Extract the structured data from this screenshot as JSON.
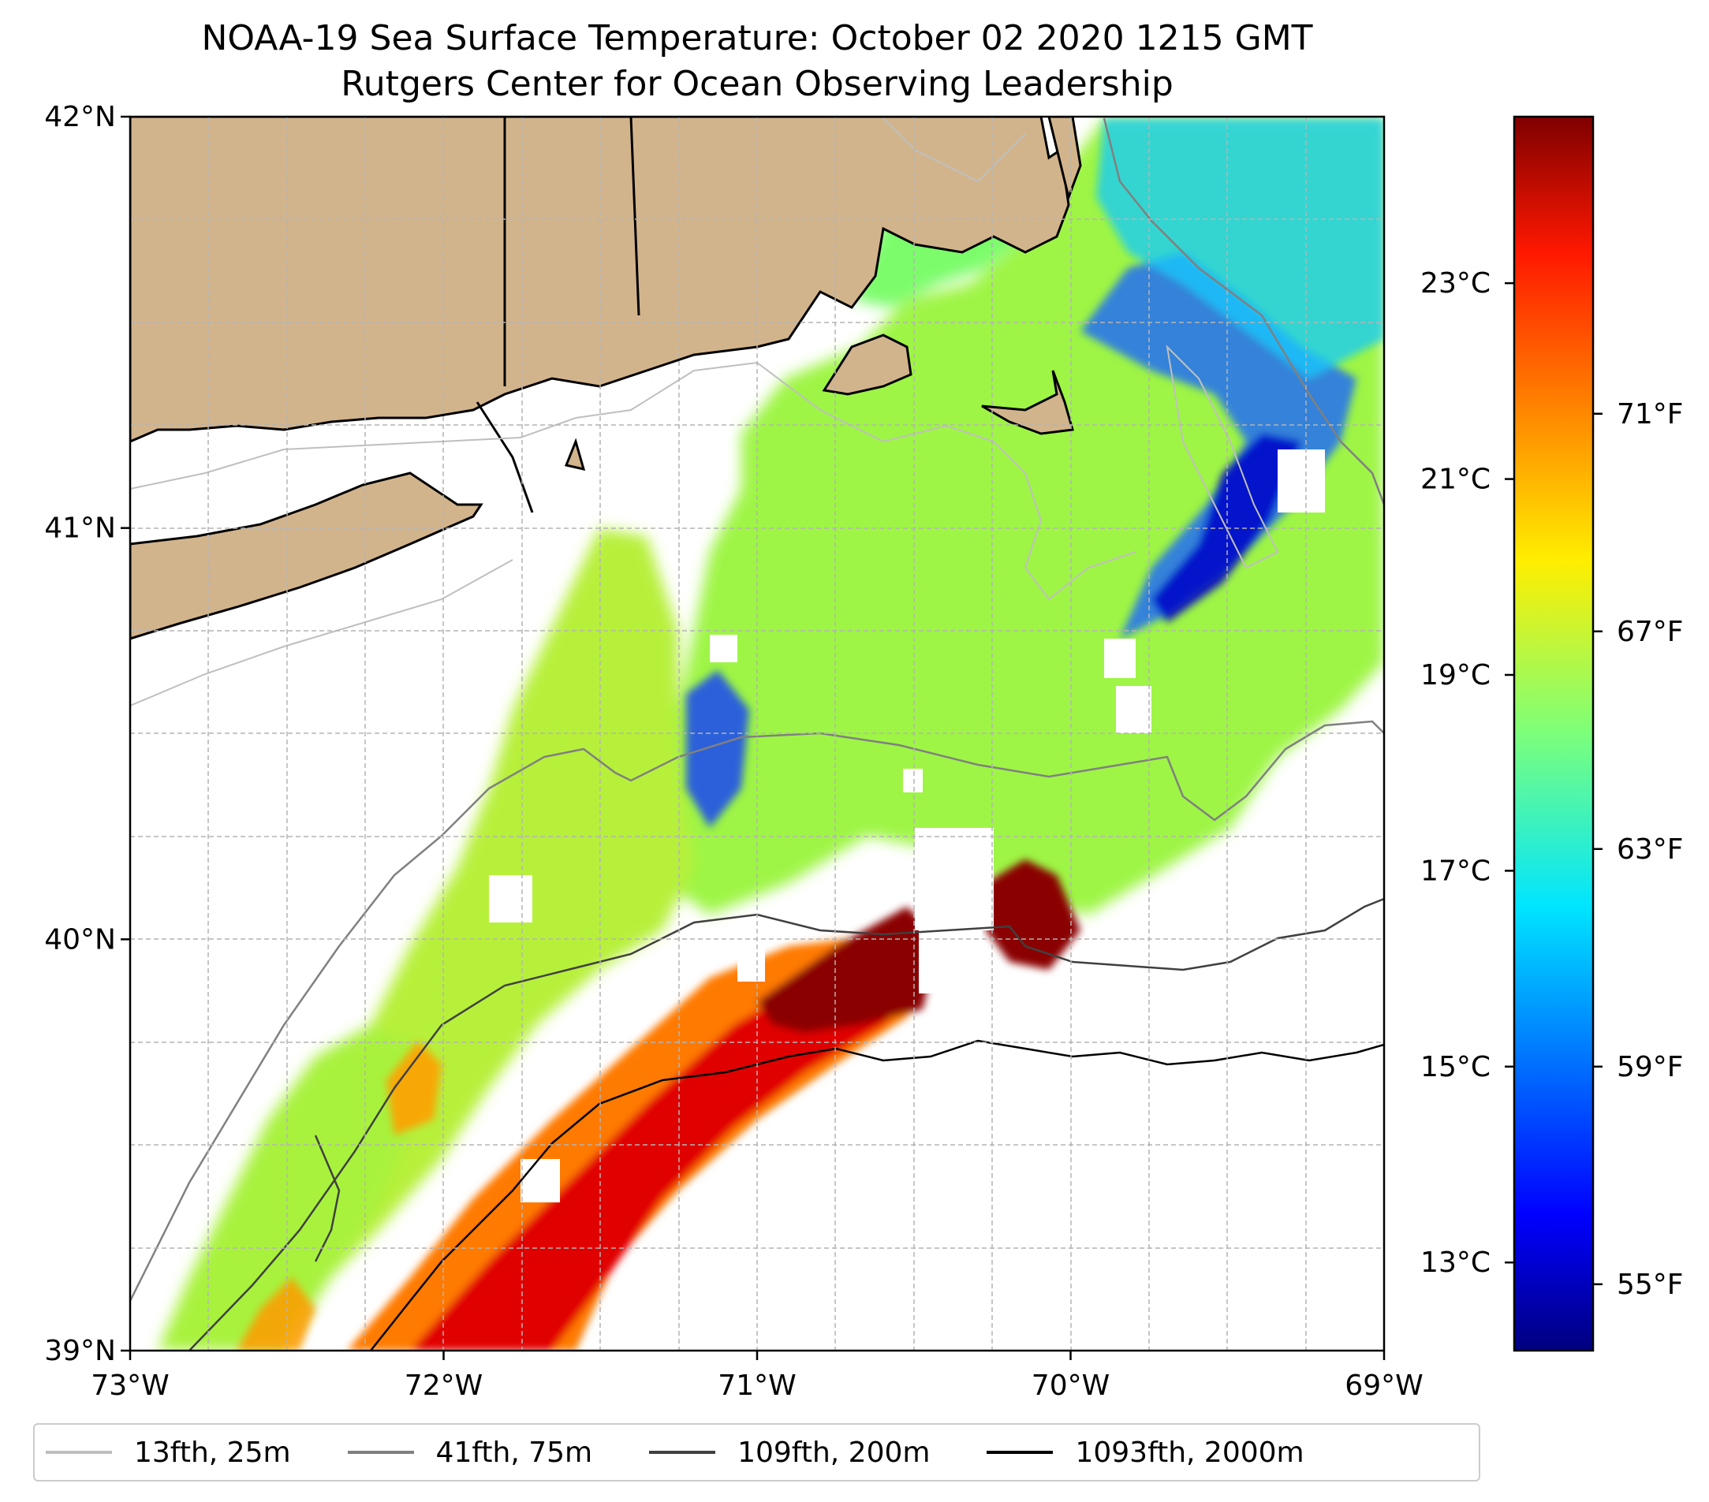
{
  "title": {
    "line1": "NOAA-19 Sea Surface Temperature: October 02 2020 1215 GMT",
    "line2": "Rutgers Center for Ocean Observing Leadership"
  },
  "map": {
    "lon_range": [
      -73,
      -69
    ],
    "lat_range": [
      39,
      42
    ],
    "x_ticks": [
      {
        "lon": -73,
        "label": "73°W"
      },
      {
        "lon": -72,
        "label": "72°W"
      },
      {
        "lon": -71,
        "label": "71°W"
      },
      {
        "lon": -70,
        "label": "70°W"
      },
      {
        "lon": -69,
        "label": "69°W"
      }
    ],
    "y_ticks": [
      {
        "lat": 42,
        "label": "42°N"
      },
      {
        "lat": 41,
        "label": "41°N"
      },
      {
        "lat": 40,
        "label": "40°N"
      },
      {
        "lat": 39,
        "label": "39°N"
      }
    ],
    "land_color": "#D2B48C",
    "gridlines": "dashed"
  },
  "colorbar": {
    "colormap": "jet",
    "range_c": [
      12.1,
      24.7
    ],
    "celsius_ticks": [
      {
        "value": 13,
        "label": "13°C"
      },
      {
        "value": 15,
        "label": "15°C"
      },
      {
        "value": 17,
        "label": "17°C"
      },
      {
        "value": 19,
        "label": "19°C"
      },
      {
        "value": 21,
        "label": "21°C"
      },
      {
        "value": 23,
        "label": "23°C"
      }
    ],
    "fahrenheit_ticks": [
      {
        "value": 55,
        "label": "55°F"
      },
      {
        "value": 59,
        "label": "59°F"
      },
      {
        "value": 63,
        "label": "63°F"
      },
      {
        "value": 67,
        "label": "67°F"
      },
      {
        "value": 71,
        "label": "71°F"
      }
    ]
  },
  "legend": {
    "items": [
      {
        "label": "13fth, 25m",
        "color": "#bfbfbf"
      },
      {
        "label": "41fth, 75m",
        "color": "#808080"
      },
      {
        "label": "109fth, 200m",
        "color": "#404040"
      },
      {
        "label": "1093fth, 2000m",
        "color": "#000000"
      }
    ]
  }
}
